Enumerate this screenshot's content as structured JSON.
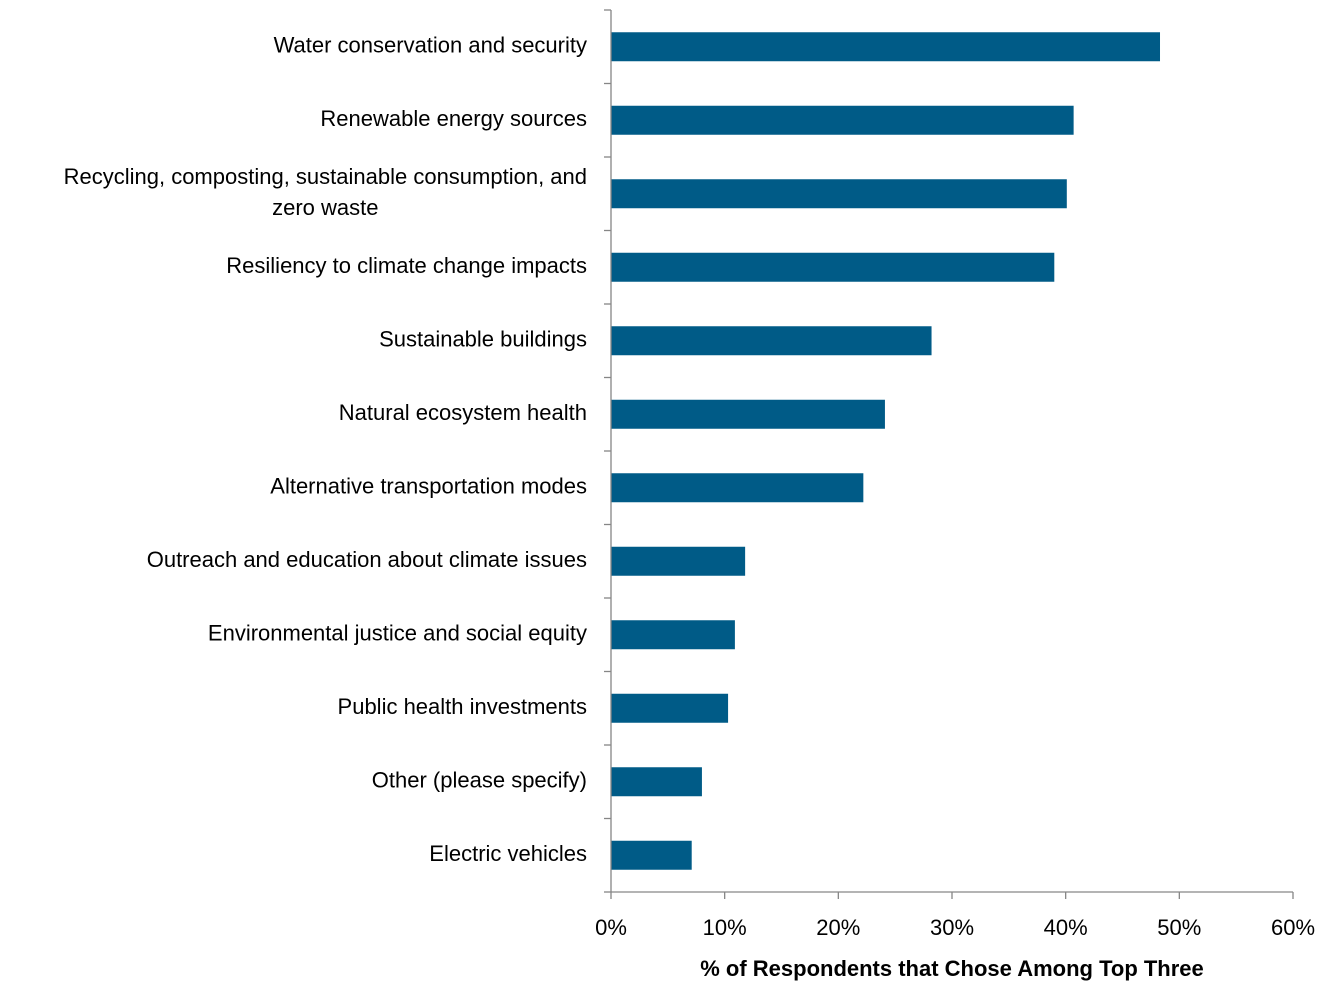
{
  "chart_data": {
    "type": "bar",
    "orientation": "horizontal",
    "categories": [
      [
        "Water conservation and security"
      ],
      [
        "Renewable energy sources"
      ],
      [
        "Recycling, composting, sustainable consumption, and",
        "zero waste"
      ],
      [
        "Resiliency to climate change impacts"
      ],
      [
        "Sustainable buildings"
      ],
      [
        "Natural ecosystem health"
      ],
      [
        "Alternative transportation modes"
      ],
      [
        "Outreach and education about climate issues"
      ],
      [
        "Environmental justice and social equity"
      ],
      [
        "Public health investments"
      ],
      [
        "Other (please specify)"
      ],
      [
        "Electric vehicles"
      ]
    ],
    "values": [
      48.3,
      40.7,
      40.1,
      39.0,
      28.2,
      24.1,
      22.2,
      11.8,
      10.9,
      10.3,
      8.0,
      7.1
    ],
    "xlim": [
      0,
      60
    ],
    "x_ticks": [
      0,
      10,
      20,
      30,
      40,
      50,
      60
    ],
    "x_tick_labels": [
      "0%",
      "10%",
      "20%",
      "30%",
      "40%",
      "50%",
      "60%"
    ],
    "xlabel": "% of Respondents that Chose Among Top Three",
    "ylabel": "",
    "title": "",
    "grid": false,
    "legend": "none",
    "bar_color": "#005B87",
    "axis_color": "#868686"
  }
}
